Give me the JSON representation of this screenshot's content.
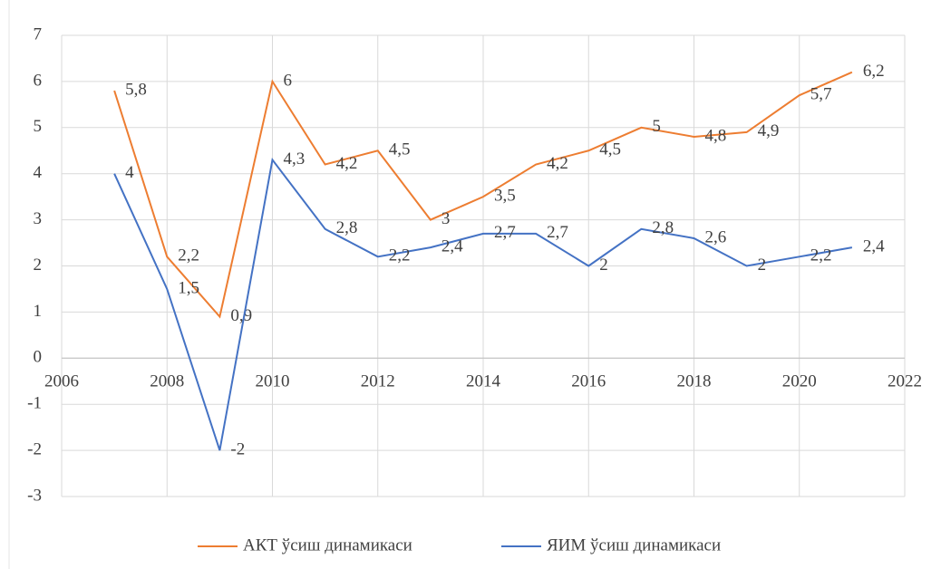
{
  "chart_data": {
    "type": "line",
    "x": [
      2007,
      2008,
      2009,
      2010,
      2011,
      2012,
      2013,
      2014,
      2015,
      2016,
      2017,
      2018,
      2019,
      2020,
      2021
    ],
    "series": [
      {
        "name": "АКТ ўсиш динамикаси",
        "color": "#ed7d31",
        "values": [
          5.8,
          2.2,
          0.9,
          6,
          4.2,
          4.5,
          3,
          3.5,
          4.2,
          4.5,
          5,
          4.8,
          4.9,
          5.7,
          6.2
        ],
        "value_labels": [
          "5,8",
          "2,2",
          "0,9",
          "6",
          "4,2",
          "4,5",
          "3",
          "3,5",
          "4,2",
          "4,5",
          "5",
          "4,8",
          "4,9",
          "5,7",
          "6,2"
        ]
      },
      {
        "name": "ЯИМ ўсиш динамикаси",
        "color": "#4472c4",
        "values": [
          4,
          1.5,
          -2,
          4.3,
          2.8,
          2.2,
          2.4,
          2.7,
          2.7,
          2,
          2.8,
          2.6,
          2,
          2.2,
          2.4
        ],
        "value_labels": [
          "4",
          "1,5",
          "-2",
          "4,3",
          "2,8",
          "2,2",
          "2,4",
          "2,7",
          "2,7",
          "2",
          "2,8",
          "2,6",
          "2",
          "2,2",
          "2,4"
        ]
      }
    ],
    "xlim": [
      2006,
      2022
    ],
    "xticks": [
      2006,
      2008,
      2010,
      2012,
      2014,
      2016,
      2018,
      2020,
      2022
    ],
    "ylim": [
      -3,
      7
    ],
    "yticks": [
      -3,
      -2,
      -1,
      0,
      1,
      2,
      3,
      4,
      5,
      6,
      7
    ],
    "grid": true,
    "legend": "bottom"
  }
}
